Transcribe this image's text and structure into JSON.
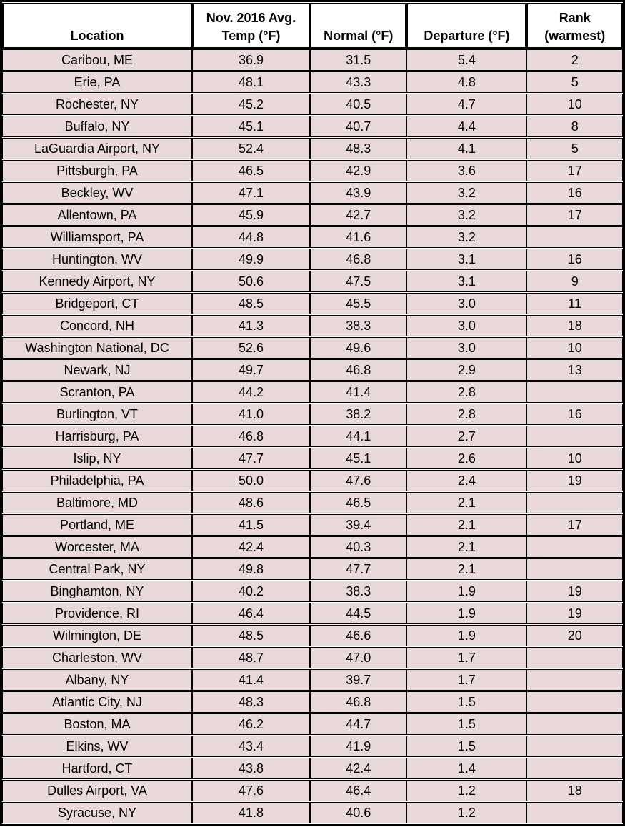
{
  "colors": {
    "row_background": "#EAD9DA",
    "header_background": "#FFFFFF",
    "grid_border": "#000000",
    "text": "#000000"
  },
  "table": {
    "headers": [
      "Location",
      "Nov. 2016 Avg.\nTemp (°F)",
      "Normal (°F)",
      "Departure (°F)",
      "Rank\n(warmest)"
    ]
  },
  "chart_data": {
    "type": "table",
    "columns": [
      "Location",
      "Nov. 2016 Avg. Temp (°F)",
      "Normal (°F)",
      "Departure (°F)",
      "Rank (warmest)"
    ],
    "rows": [
      [
        "Caribou, ME",
        "36.9",
        "31.5",
        "5.4",
        "2"
      ],
      [
        "Erie, PA",
        "48.1",
        "43.3",
        "4.8",
        "5"
      ],
      [
        "Rochester, NY",
        "45.2",
        "40.5",
        "4.7",
        "10"
      ],
      [
        "Buffalo, NY",
        "45.1",
        "40.7",
        "4.4",
        "8"
      ],
      [
        "LaGuardia Airport, NY",
        "52.4",
        "48.3",
        "4.1",
        "5"
      ],
      [
        "Pittsburgh, PA",
        "46.5",
        "42.9",
        "3.6",
        "17"
      ],
      [
        "Beckley, WV",
        "47.1",
        "43.9",
        "3.2",
        "16"
      ],
      [
        "Allentown, PA",
        "45.9",
        "42.7",
        "3.2",
        "17"
      ],
      [
        "Williamsport, PA",
        "44.8",
        "41.6",
        "3.2",
        ""
      ],
      [
        "Huntington, WV",
        "49.9",
        "46.8",
        "3.1",
        "16"
      ],
      [
        "Kennedy Airport, NY",
        "50.6",
        "47.5",
        "3.1",
        "9"
      ],
      [
        "Bridgeport, CT",
        "48.5",
        "45.5",
        "3.0",
        "11"
      ],
      [
        "Concord, NH",
        "41.3",
        "38.3",
        "3.0",
        "18"
      ],
      [
        "Washington National, DC",
        "52.6",
        "49.6",
        "3.0",
        "10"
      ],
      [
        "Newark, NJ",
        "49.7",
        "46.8",
        "2.9",
        "13"
      ],
      [
        "Scranton, PA",
        "44.2",
        "41.4",
        "2.8",
        ""
      ],
      [
        "Burlington, VT",
        "41.0",
        "38.2",
        "2.8",
        "16"
      ],
      [
        "Harrisburg, PA",
        "46.8",
        "44.1",
        "2.7",
        ""
      ],
      [
        "Islip, NY",
        "47.7",
        "45.1",
        "2.6",
        "10"
      ],
      [
        "Philadelphia, PA",
        "50.0",
        "47.6",
        "2.4",
        "19"
      ],
      [
        "Baltimore, MD",
        "48.6",
        "46.5",
        "2.1",
        ""
      ],
      [
        "Portland, ME",
        "41.5",
        "39.4",
        "2.1",
        "17"
      ],
      [
        "Worcester, MA",
        "42.4",
        "40.3",
        "2.1",
        ""
      ],
      [
        "Central Park, NY",
        "49.8",
        "47.7",
        "2.1",
        ""
      ],
      [
        "Binghamton, NY",
        "40.2",
        "38.3",
        "1.9",
        "19"
      ],
      [
        "Providence, RI",
        "46.4",
        "44.5",
        "1.9",
        "19"
      ],
      [
        "Wilmington, DE",
        "48.5",
        "46.6",
        "1.9",
        "20"
      ],
      [
        "Charleston, WV",
        "48.7",
        "47.0",
        "1.7",
        ""
      ],
      [
        "Albany, NY",
        "41.4",
        "39.7",
        "1.7",
        ""
      ],
      [
        "Atlantic City, NJ",
        "48.3",
        "46.8",
        "1.5",
        ""
      ],
      [
        "Boston, MA",
        "46.2",
        "44.7",
        "1.5",
        ""
      ],
      [
        "Elkins, WV",
        "43.4",
        "41.9",
        "1.5",
        ""
      ],
      [
        "Hartford, CT",
        "43.8",
        "42.4",
        "1.4",
        ""
      ],
      [
        "Dulles Airport, VA",
        "47.6",
        "46.4",
        "1.2",
        "18"
      ],
      [
        "Syracuse, NY",
        "41.8",
        "40.6",
        "1.2",
        ""
      ]
    ]
  }
}
